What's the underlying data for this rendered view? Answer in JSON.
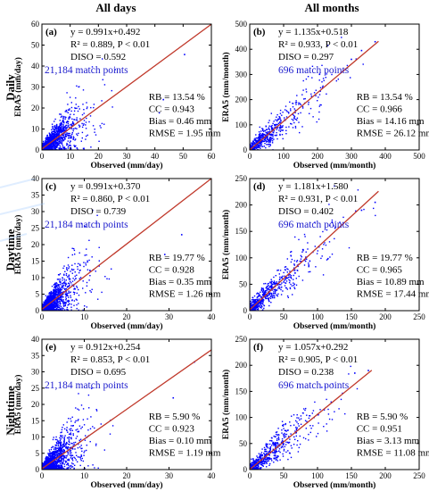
{
  "column_titles": [
    "All days",
    "All months"
  ],
  "row_titles": [
    "Daily",
    "Daytime",
    "Nighttime"
  ],
  "colors": {
    "points": "#0000ff",
    "fit_line": "#c0392b",
    "match_text": "#1a1acc",
    "axes": "#000000"
  },
  "chart_data": [
    {
      "type": "scatter",
      "panel": "(a)",
      "xlabel": "Observed (mm/day)",
      "ylabel": "ERA5 (mm/day)",
      "xlim": [
        0,
        60
      ],
      "ylim": [
        0,
        60
      ],
      "xticks": [
        0,
        10,
        20,
        30,
        40,
        50,
        60
      ],
      "yticks": [
        0,
        10,
        20,
        30,
        40,
        50,
        60
      ],
      "fit": {
        "equation": "y = 0.991x+0.492",
        "slope": 0.991,
        "intercept": 0.492,
        "x_end": 60
      },
      "r2_text": "R² = 0.889, P < 0.01",
      "diso_text": "DISO = 0.592",
      "match_text": "21,184 match points",
      "stats": [
        "RB = 13.54 %",
        "CC = 0.943",
        "Bias = 0.46 mm",
        "RMSE = 1.95 mm"
      ],
      "cloud": {
        "n": 1500,
        "xscale": 4,
        "cap": 42,
        "spread": 0.55
      },
      "outliers": [
        [
          50.5,
          45.5
        ],
        [
          43,
          24
        ]
      ]
    },
    {
      "type": "scatter",
      "panel": "(b)",
      "xlabel": "Observed (mm/month)",
      "ylabel": "ERA5 (mm/month)",
      "xlim": [
        0,
        500
      ],
      "ylim": [
        0,
        500
      ],
      "xticks": [
        0,
        100,
        200,
        300,
        400,
        500
      ],
      "yticks": [
        0,
        100,
        200,
        300,
        400,
        500
      ],
      "fit": {
        "equation": "y = 1.135x+0.518",
        "slope": 1.135,
        "intercept": 0.518,
        "x_end": 380
      },
      "r2_text": "R² = 0.933, P < 0.01",
      "diso_text": "DISO = 0.297",
      "match_text": "696 match points",
      "stats": [
        "RB = 13.54 %",
        "CC = 0.966",
        "Bias = 14.16 mm",
        "RMSE = 26.12 mm"
      ],
      "cloud": {
        "n": 560,
        "xscale": 70,
        "cap": 350,
        "spread": 0.22
      },
      "outliers": [
        [
          370,
          430
        ],
        [
          330,
          395
        ],
        [
          300,
          360
        ]
      ]
    },
    {
      "type": "scatter",
      "panel": "(c)",
      "xlabel": "Observed (mm/day)",
      "ylabel": "ERA5 (mm/day)",
      "xlim": [
        0,
        40
      ],
      "ylim": [
        0,
        40
      ],
      "xticks": [
        0,
        10,
        20,
        30,
        40
      ],
      "yticks": [
        0,
        5,
        10,
        15,
        20,
        25,
        30,
        35,
        40
      ],
      "fit": {
        "equation": "y = 0.991x+0.370",
        "slope": 0.991,
        "intercept": 0.37,
        "x_end": 40
      },
      "r2_text": "R² = 0.860, P < 0.01",
      "diso_text": "DISO = 0.739",
      "match_text": "21,184 match points",
      "stats": [
        "RB = 19.77 %",
        "CC = 0.928",
        "Bias = 0.35 mm",
        "RMSE = 1.26 mm"
      ],
      "cloud": {
        "n": 1500,
        "xscale": 2.5,
        "cap": 26,
        "spread": 0.6
      },
      "outliers": [
        [
          33,
          23
        ],
        [
          29,
          17
        ]
      ]
    },
    {
      "type": "scatter",
      "panel": "(d)",
      "xlabel": "Observed (mm/month)",
      "ylabel": "ERA5 (mm/month)",
      "xlim": [
        0,
        250
      ],
      "ylim": [
        0,
        250
      ],
      "xticks": [
        0,
        50,
        100,
        150,
        200,
        250
      ],
      "yticks": [
        0,
        50,
        100,
        150,
        200,
        250
      ],
      "fit": {
        "equation": "y = 1.181x+1.580",
        "slope": 1.181,
        "intercept": 1.58,
        "x_end": 190
      },
      "r2_text": "R² = 0.931, P < 0.01",
      "diso_text": "DISO = 0.402",
      "match_text": "696 match points",
      "stats": [
        "RB = 19.77 %",
        "CC = 0.965",
        "Bias = 10.89 mm",
        "RMSE = 17.44 mm"
      ],
      "cloud": {
        "n": 560,
        "xscale": 40,
        "cap": 190,
        "spread": 0.22
      },
      "outliers": [
        [
          185,
          205
        ],
        [
          165,
          190
        ]
      ]
    },
    {
      "type": "scatter",
      "panel": "(e)",
      "xlabel": "Observed (mm/day)",
      "ylabel": "ERA5 (mm/day)",
      "xlim": [
        0,
        40
      ],
      "ylim": [
        0,
        40
      ],
      "xticks": [
        0,
        10,
        20,
        30,
        40
      ],
      "yticks": [
        0,
        5,
        10,
        15,
        20,
        25,
        30,
        35,
        40
      ],
      "fit": {
        "equation": "y = 0.912x+0.254",
        "slope": 0.912,
        "intercept": 0.254,
        "x_end": 40
      },
      "r2_text": "R² = 0.853, P < 0.01",
      "diso_text": "DISO = 0.695",
      "match_text": "21,184 match points",
      "stats": [
        "RB = 5.90 %",
        "CC = 0.923",
        "Bias = 0.10 mm",
        "RMSE = 1.19 mm"
      ],
      "cloud": {
        "n": 1500,
        "xscale": 2.8,
        "cap": 28,
        "spread": 0.6
      },
      "outliers": [
        [
          36,
          33
        ],
        [
          31,
          22
        ]
      ]
    },
    {
      "type": "scatter",
      "panel": "(f)",
      "xlabel": "Observed (mm/month)",
      "ylabel": "ERA5 (mm/month)",
      "xlim": [
        0,
        250
      ],
      "ylim": [
        0,
        250
      ],
      "xticks": [
        0,
        50,
        100,
        150,
        200,
        250
      ],
      "yticks": [
        0,
        50,
        100,
        150,
        200,
        250
      ],
      "fit": {
        "equation": "y = 1.057x+0.292",
        "slope": 1.057,
        "intercept": 0.292,
        "x_end": 180
      },
      "r2_text": "R² = 0.905, P < 0.01",
      "diso_text": "DISO = 0.238",
      "match_text": "696 match points",
      "stats": [
        "RB = 5.90 %",
        "CC = 0.951",
        "Bias = 3.13 mm",
        "RMSE = 11.08 mm"
      ],
      "cloud": {
        "n": 560,
        "xscale": 35,
        "cap": 170,
        "spread": 0.22
      },
      "outliers": [
        [
          175,
          190
        ],
        [
          155,
          185
        ]
      ]
    }
  ]
}
